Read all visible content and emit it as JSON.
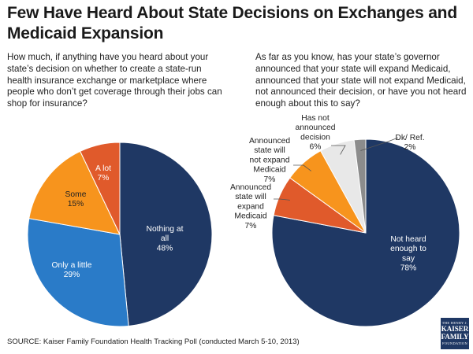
{
  "title": "Few Have Heard About State Decisions on Exchanges and Medicaid Expansion",
  "source": "SOURCE: Kaiser Family Foundation Health Tracking Poll (conducted March 5-10, 2013)",
  "logo": {
    "line1": "THE HENRY J.",
    "line2a": "KAISER",
    "line2b": "FAMILY",
    "line3": "FOUNDATION"
  },
  "chart_data": [
    {
      "type": "pie",
      "title": "How much, if anything have you heard about your state’s decision on whether to create a state-run health insurance exchange or marketplace where people who don’t get coverage through their jobs can shop for insurance?",
      "slices": [
        {
          "label": [
            "Nothing at",
            "all"
          ],
          "value": 48,
          "value_label": "48%",
          "color": "#1f3864"
        },
        {
          "label": [
            "Only a little"
          ],
          "value": 29,
          "value_label": "29%",
          "color": "#2a7bc8"
        },
        {
          "label": [
            "Some"
          ],
          "value": 15,
          "value_label": "15%",
          "color": "#f7941d"
        },
        {
          "label": [
            "A lot"
          ],
          "value": 7,
          "value_label": "7%",
          "color": "#e05a2b"
        }
      ]
    },
    {
      "type": "pie",
      "title": "As far as you know, has your state’s governor announced that your state will expand Medicaid, announced that your state will not expand Medicaid, not announced their decision, or have you not heard enough about this to say?",
      "slices": [
        {
          "label": [
            "Not heard",
            "enough to",
            "say"
          ],
          "value": 78,
          "value_label": "78%",
          "color": "#1f3864"
        },
        {
          "label": [
            "Announced",
            "state will",
            "expand",
            "Medicaid"
          ],
          "value": 7,
          "value_label": "7%",
          "color": "#e05a2b"
        },
        {
          "label": [
            "Announced",
            "state will",
            "not expand",
            "Medicaid"
          ],
          "value": 7,
          "value_label": "7%",
          "color": "#f7941d"
        },
        {
          "label": [
            "Has not",
            "announced",
            "decision"
          ],
          "value": 6,
          "value_label": "6%",
          "color": "#e8e8e8"
        },
        {
          "label": [
            "Dk/ Ref."
          ],
          "value": 2,
          "value_label": "2%",
          "color": "#8c8c8c"
        }
      ]
    }
  ]
}
